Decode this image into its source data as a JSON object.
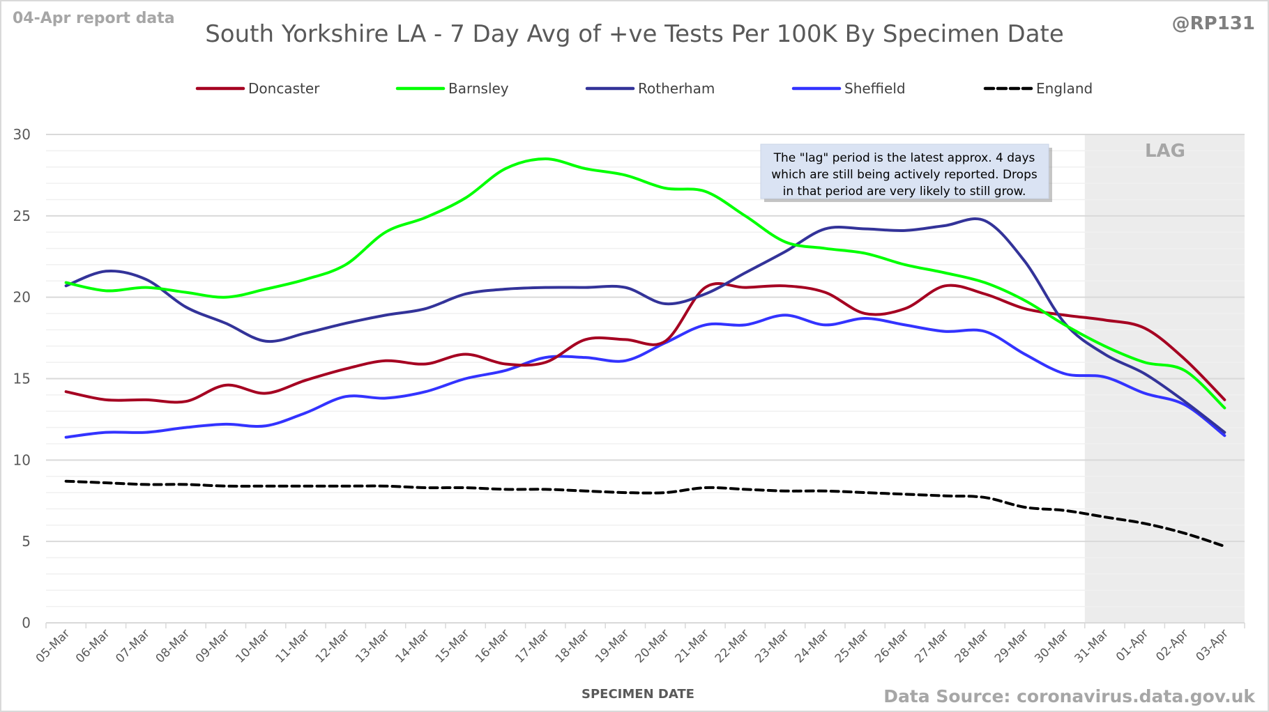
{
  "report_label": "04-Apr report data",
  "handle": "@RP131",
  "source": "Data Source: coronavirus.data.gov.uk",
  "lag_label": "LAG",
  "note_lines": [
    "The \"lag\" period is the latest approx. 4 days",
    "which are still being actively reported.  Drops",
    "in that period are very likely to still grow."
  ],
  "chart_data": {
    "type": "line",
    "title": "South Yorkshire LA - 7 Day Avg of +ve Tests Per 100K By Specimen Date",
    "xlabel": "SPECIMEN DATE",
    "ylabel": "",
    "ylim": [
      0,
      30
    ],
    "yticks": [
      0,
      5,
      10,
      15,
      20,
      25,
      30
    ],
    "grid": true,
    "legend_position": "top",
    "lag_period": {
      "from": "31-Mar",
      "to": "03-Apr",
      "shaded_color": "#ececec"
    },
    "categories": [
      "05-Mar",
      "06-Mar",
      "07-Mar",
      "08-Mar",
      "09-Mar",
      "10-Mar",
      "11-Mar",
      "12-Mar",
      "13-Mar",
      "14-Mar",
      "15-Mar",
      "16-Mar",
      "17-Mar",
      "18-Mar",
      "19-Mar",
      "20-Mar",
      "21-Mar",
      "22-Mar",
      "23-Mar",
      "24-Mar",
      "25-Mar",
      "26-Mar",
      "27-Mar",
      "28-Mar",
      "29-Mar",
      "30-Mar",
      "31-Mar",
      "01-Apr",
      "02-Apr",
      "03-Apr"
    ],
    "series": [
      {
        "name": "Doncaster",
        "color": "#a50021",
        "dashed": false,
        "values": [
          14.2,
          13.7,
          13.7,
          13.6,
          14.6,
          14.1,
          14.9,
          15.6,
          16.1,
          15.9,
          16.5,
          15.9,
          16.0,
          17.4,
          17.4,
          17.3,
          20.6,
          20.6,
          20.7,
          20.3,
          19.0,
          19.3,
          20.7,
          20.2,
          19.3,
          18.9,
          18.6,
          18.1,
          16.2,
          13.7
        ]
      },
      {
        "name": "Barnsley",
        "color": "#00ff00",
        "dashed": false,
        "values": [
          20.9,
          20.4,
          20.6,
          20.3,
          20.0,
          20.5,
          21.1,
          22.0,
          24.0,
          24.9,
          26.1,
          27.9,
          28.5,
          27.9,
          27.5,
          26.7,
          26.5,
          25.0,
          23.4,
          23.0,
          22.7,
          22.0,
          21.5,
          20.9,
          19.8,
          18.3,
          17.0,
          16.0,
          15.5,
          13.2
        ]
      },
      {
        "name": "Rotherham",
        "color": "#333399",
        "dashed": false,
        "values": [
          20.7,
          21.6,
          21.1,
          19.4,
          18.4,
          17.3,
          17.8,
          18.4,
          18.9,
          19.3,
          20.2,
          20.5,
          20.6,
          20.6,
          20.6,
          19.6,
          20.2,
          21.5,
          22.8,
          24.2,
          24.2,
          24.1,
          24.4,
          24.7,
          22.2,
          18.4,
          16.5,
          15.3,
          13.6,
          11.7
        ]
      },
      {
        "name": "Sheffield",
        "color": "#3333ff",
        "dashed": false,
        "values": [
          11.4,
          11.7,
          11.7,
          12.0,
          12.2,
          12.1,
          12.9,
          13.9,
          13.8,
          14.2,
          15.0,
          15.5,
          16.3,
          16.3,
          16.1,
          17.2,
          18.3,
          18.3,
          18.9,
          18.3,
          18.7,
          18.3,
          17.9,
          17.9,
          16.5,
          15.3,
          15.1,
          14.1,
          13.4,
          11.5
        ]
      },
      {
        "name": "England",
        "color": "#000000",
        "dashed": true,
        "values": [
          8.7,
          8.6,
          8.5,
          8.5,
          8.4,
          8.4,
          8.4,
          8.4,
          8.4,
          8.3,
          8.3,
          8.2,
          8.2,
          8.1,
          8.0,
          8.0,
          8.3,
          8.2,
          8.1,
          8.1,
          8.0,
          7.9,
          7.8,
          7.7,
          7.1,
          6.9,
          6.5,
          6.1,
          5.5,
          4.7
        ]
      }
    ]
  }
}
